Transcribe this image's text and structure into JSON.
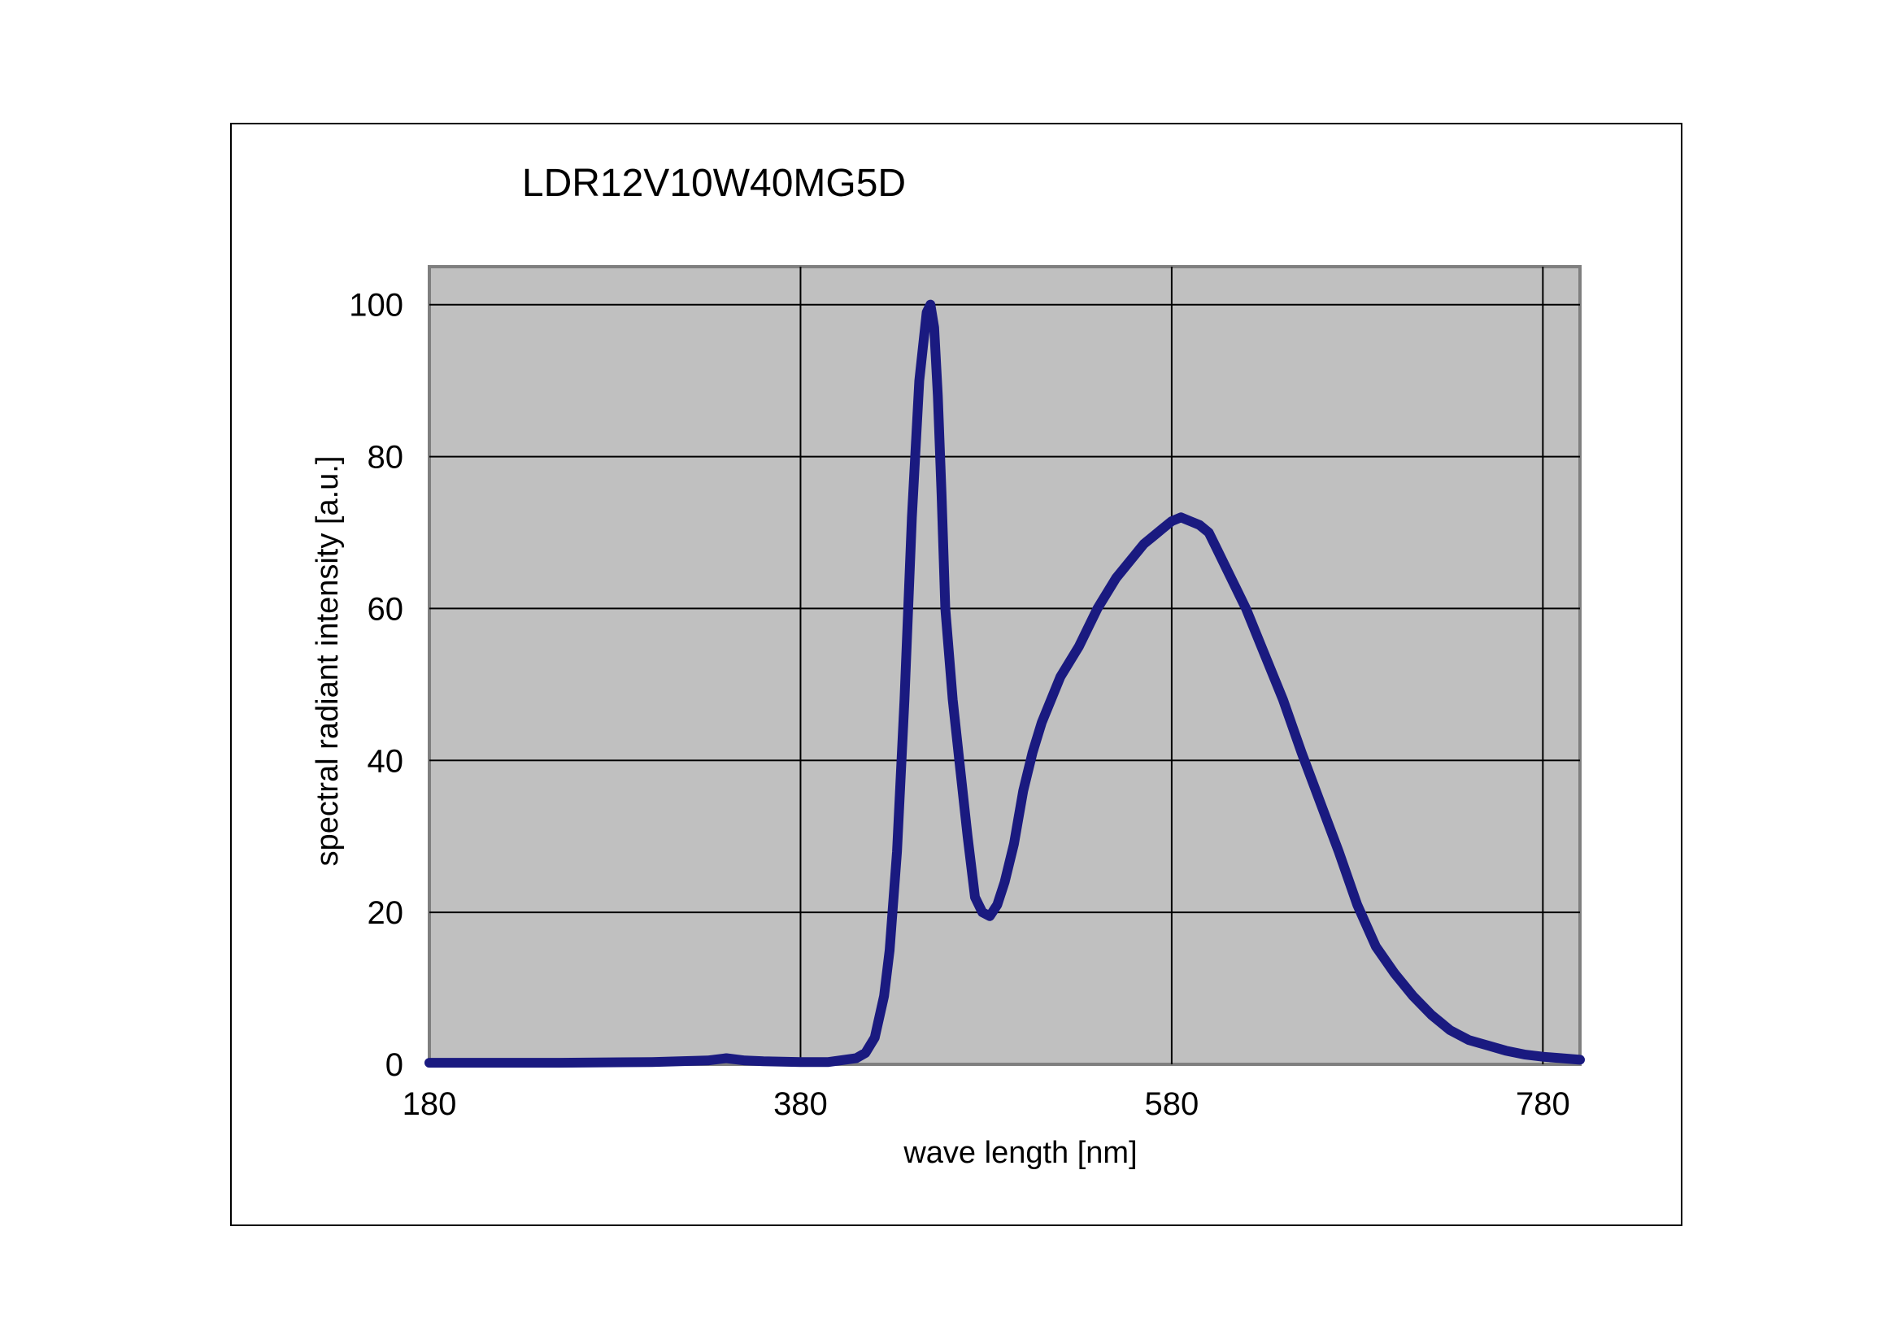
{
  "chart_data": {
    "type": "line",
    "title": "LDR12V10W40MG5D",
    "xlabel": "wave length [nm]",
    "ylabel": "spectral radiant intensity [a.u.]",
    "xlim": [
      180,
      800
    ],
    "ylim": [
      0,
      105
    ],
    "x_ticks": [
      180,
      380,
      580,
      780
    ],
    "y_ticks": [
      0,
      20,
      40,
      60,
      80,
      100
    ],
    "grid": true,
    "legend": "none",
    "colors": {
      "plot_background": "#c0c0c0",
      "series": "#1a1a80",
      "grid": "#000000"
    },
    "series": [
      {
        "x": [
          180,
          250,
          300,
          330,
          340,
          350,
          360,
          380,
          395,
          410,
          415,
          420,
          425,
          428,
          432,
          436,
          440,
          444,
          448,
          450,
          452,
          454,
          456,
          458,
          462,
          466,
          470,
          474,
          478,
          482,
          486,
          490,
          495,
          500,
          505,
          510,
          520,
          530,
          540,
          550,
          560,
          565,
          570,
          575,
          580,
          585,
          590,
          595,
          600,
          605,
          610,
          620,
          630,
          640,
          650,
          660,
          670,
          680,
          690,
          700,
          710,
          720,
          730,
          740,
          750,
          760,
          770,
          780,
          790,
          800
        ],
        "y": [
          0.2,
          0.2,
          0.3,
          0.5,
          0.8,
          0.5,
          0.4,
          0.3,
          0.3,
          0.8,
          1.5,
          3.5,
          9,
          15,
          28,
          48,
          72,
          90,
          99,
          100,
          97,
          88,
          75,
          60,
          48,
          39,
          30,
          22,
          20,
          19.5,
          21,
          24,
          29,
          36,
          41,
          45,
          51,
          55,
          60,
          64,
          67,
          68.5,
          69.5,
          70.5,
          71.5,
          72,
          71.5,
          71,
          70,
          67.5,
          65,
          60,
          54,
          48,
          41,
          34.5,
          28,
          21,
          15.5,
          12,
          9,
          6.5,
          4.5,
          3.2,
          2.5,
          1.8,
          1.3,
          1.0,
          0.8,
          0.6
        ]
      }
    ]
  }
}
